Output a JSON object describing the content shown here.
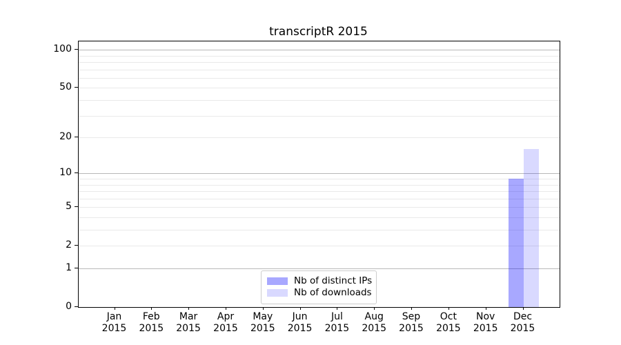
{
  "title": "transcriptR 2015",
  "chart_data": {
    "type": "bar",
    "title": "transcriptR 2015",
    "x_months": [
      "Jan",
      "Feb",
      "Mar",
      "Apr",
      "May",
      "Jun",
      "Jul",
      "Aug",
      "Sep",
      "Oct",
      "Nov",
      "Dec"
    ],
    "x_year": "2015",
    "series": [
      {
        "name": "Nb of distinct IPs",
        "color": "rgba(0,0,255,0.34)",
        "values": [
          0,
          0,
          0,
          0,
          0,
          0,
          0,
          0,
          0,
          0,
          0,
          9
        ]
      },
      {
        "name": "Nb of downloads",
        "color": "rgba(0,0,255,0.15)",
        "values": [
          0,
          0,
          0,
          0,
          0,
          0,
          0,
          0,
          0,
          0,
          0,
          16
        ]
      }
    ],
    "y_scale": "log10(1+y)",
    "y_tick_labels": [
      "0",
      "1",
      "2",
      "5",
      "10",
      "20",
      "50",
      "100"
    ],
    "y_tick_values": [
      0,
      1,
      2,
      5,
      10,
      20,
      50,
      100
    ],
    "y_grid_major": [
      1,
      10,
      100
    ],
    "y_grid_minor": [
      2,
      3,
      4,
      5,
      6,
      7,
      8,
      9,
      20,
      30,
      40,
      50,
      60,
      70,
      80,
      90
    ],
    "ylim": [
      0,
      117
    ],
    "grid": true,
    "legend_position": "lower center",
    "colors": {
      "grid_major": "#b8b8b8",
      "grid_minor": "#e9e9e9",
      "axis": "#000000",
      "text": "#000000",
      "background": "#ffffff"
    }
  }
}
